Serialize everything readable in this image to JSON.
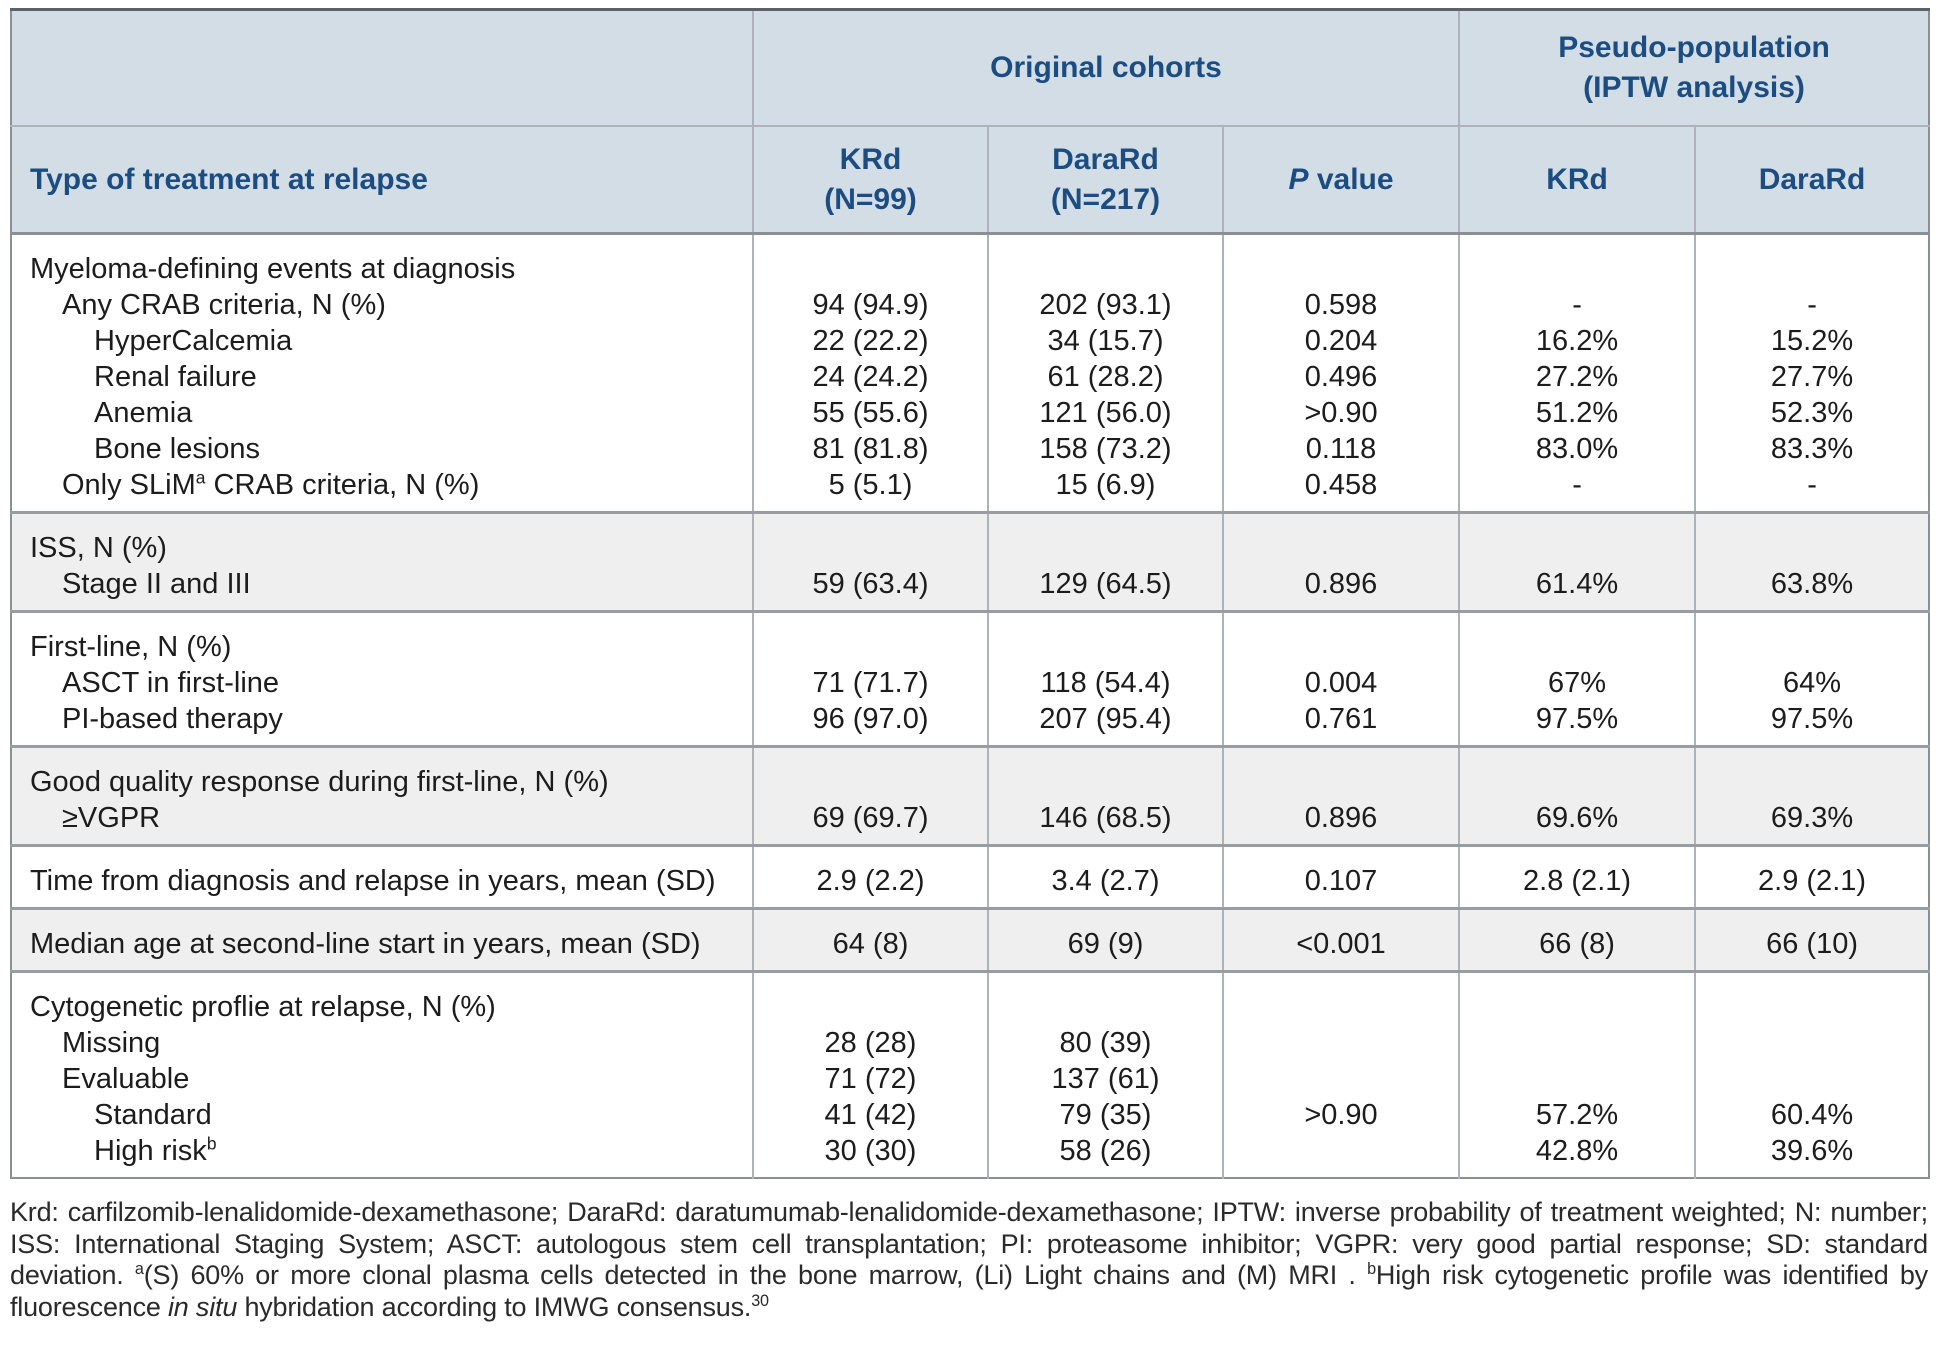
{
  "table": {
    "header": {
      "group_original": "Original cohorts",
      "group_pseudo_line1": "Pseudo-population",
      "group_pseudo_line2": "(IPTW analysis)",
      "col_label": "Type of treatment at relapse",
      "col_krd_line1": "KRd",
      "col_krd_line2": "(N=99)",
      "col_darard_line1": "DaraRd",
      "col_darard_line2": "(N=217)",
      "col_p_italic": "P",
      "col_p_rest": " value",
      "col_krd_pseudo": "KRd",
      "col_darard_pseudo": "DaraRd"
    },
    "sections": [
      {
        "shaded": false,
        "rows": [
          {
            "indent": 0,
            "pre": "Myeloma-defining events at diagnosis",
            "sup": "",
            "post": "",
            "cells": [
              "",
              "",
              "",
              "",
              ""
            ]
          },
          {
            "indent": 1,
            "pre": "Any CRAB criteria, N (%)",
            "sup": "",
            "post": "",
            "cells": [
              "94 (94.9)",
              "202 (93.1)",
              "0.598",
              "-",
              "-"
            ]
          },
          {
            "indent": 2,
            "pre": "HyperCalcemia",
            "sup": "",
            "post": "",
            "cells": [
              "22 (22.2)",
              "34 (15.7)",
              "0.204",
              "16.2%",
              "15.2%"
            ]
          },
          {
            "indent": 2,
            "pre": "Renal failure",
            "sup": "",
            "post": "",
            "cells": [
              "24 (24.2)",
              "61 (28.2)",
              "0.496",
              "27.2%",
              "27.7%"
            ]
          },
          {
            "indent": 2,
            "pre": "Anemia",
            "sup": "",
            "post": "",
            "cells": [
              "55 (55.6)",
              "121 (56.0)",
              ">0.90",
              "51.2%",
              "52.3%"
            ]
          },
          {
            "indent": 2,
            "pre": "Bone lesions",
            "sup": "",
            "post": "",
            "cells": [
              "81 (81.8)",
              "158 (73.2)",
              "0.118",
              "83.0%",
              "83.3%"
            ]
          },
          {
            "indent": 1,
            "pre": "Only SLiM",
            "sup": "a",
            "post": " CRAB criteria, N (%)",
            "cells": [
              "5 (5.1)",
              "15 (6.9)",
              "0.458",
              "-",
              "-"
            ]
          }
        ]
      },
      {
        "shaded": true,
        "rows": [
          {
            "indent": 0,
            "pre": "ISS, N (%)",
            "sup": "",
            "post": "",
            "cells": [
              "",
              "",
              "",
              "",
              ""
            ]
          },
          {
            "indent": 1,
            "pre": "Stage II and III",
            "sup": "",
            "post": "",
            "cells": [
              "59 (63.4)",
              "129 (64.5)",
              "0.896",
              "61.4%",
              "63.8%"
            ]
          }
        ]
      },
      {
        "shaded": false,
        "rows": [
          {
            "indent": 0,
            "pre": "First-line, N (%)",
            "sup": "",
            "post": "",
            "cells": [
              "",
              "",
              "",
              "",
              ""
            ]
          },
          {
            "indent": 1,
            "pre": "ASCT in first-line",
            "sup": "",
            "post": "",
            "cells": [
              "71 (71.7)",
              "118 (54.4)",
              "0.004",
              "67%",
              "64%"
            ]
          },
          {
            "indent": 1,
            "pre": "PI-based therapy",
            "sup": "",
            "post": "",
            "cells": [
              "96 (97.0)",
              "207 (95.4)",
              "0.761",
              "97.5%",
              "97.5%"
            ]
          }
        ]
      },
      {
        "shaded": true,
        "rows": [
          {
            "indent": 0,
            "pre": "Good quality response during first-line, N (%)",
            "sup": "",
            "post": "",
            "cells": [
              "",
              "",
              "",
              "",
              ""
            ]
          },
          {
            "indent": 1,
            "pre": "≥VGPR",
            "sup": "",
            "post": "",
            "cells": [
              "69 (69.7)",
              "146 (68.5)",
              "0.896",
              "69.6%",
              "69.3%"
            ]
          }
        ]
      },
      {
        "shaded": false,
        "rows": [
          {
            "indent": 0,
            "pre": "Time from diagnosis and relapse in years, mean (SD)",
            "sup": "",
            "post": "",
            "cells": [
              "2.9 (2.2)",
              "3.4 (2.7)",
              "0.107",
              "2.8 (2.1)",
              "2.9 (2.1)"
            ]
          }
        ]
      },
      {
        "shaded": true,
        "rows": [
          {
            "indent": 0,
            "pre": "Median age at second-line start in years, mean (SD)",
            "sup": "",
            "post": "",
            "cells": [
              "64 (8)",
              "69 (9)",
              "<0.001",
              "66 (8)",
              "66 (10)"
            ]
          }
        ]
      },
      {
        "shaded": false,
        "rows": [
          {
            "indent": 0,
            "pre": "Cytogenetic proflie at relapse, N (%)",
            "sup": "",
            "post": "",
            "cells": [
              "",
              "",
              "",
              "",
              ""
            ]
          },
          {
            "indent": 1,
            "pre": "Missing",
            "sup": "",
            "post": "",
            "cells": [
              "28 (28)",
              "80 (39)",
              "",
              "",
              ""
            ]
          },
          {
            "indent": 1,
            "pre": "Evaluable",
            "sup": "",
            "post": "",
            "cells": [
              "71 (72)",
              "137 (61)",
              "",
              "",
              ""
            ]
          },
          {
            "indent": 2,
            "pre": "Standard",
            "sup": "",
            "post": "",
            "cells": [
              "41 (42)",
              "79 (35)",
              ">0.90",
              "57.2%",
              "60.4%"
            ]
          },
          {
            "indent": 2,
            "pre": "High risk",
            "sup": "b",
            "post": "",
            "cells": [
              "30 (30)",
              "58 (26)",
              "",
              "42.8%",
              "39.6%"
            ]
          }
        ]
      }
    ]
  },
  "footnote": {
    "segments": [
      {
        "style": "normal",
        "text": "Krd: carfilzomib-lenalidomide-dexamethasone; DaraRd: daratumumab-lenalidomide-dexamethasone; IPTW: inverse probability of treatment weighted; N: number; ISS: International Staging System; ASCT: autologous stem cell transplantation; PI: proteasome inhibitor; VGPR: very good partial response; SD: standard deviation. "
      },
      {
        "style": "sup",
        "text": "a"
      },
      {
        "style": "normal",
        "text": "(S) 60% or more clonal plasma cells detected in the bone marrow, (Li) Light chains and (M) MRI . "
      },
      {
        "style": "sup",
        "text": "b"
      },
      {
        "style": "normal",
        "text": "High risk cytogenetic profile was identified by fluorescence "
      },
      {
        "style": "italic",
        "text": "in situ"
      },
      {
        "style": "normal",
        "text": " hybridation according to IMWG consensus."
      },
      {
        "style": "sup",
        "text": "30"
      }
    ]
  },
  "colors": {
    "header_bg": "#d3dde6",
    "header_text": "#1b4d82",
    "shaded_section_bg": "#efefef",
    "border_dark": "#8b9095",
    "border_light": "#adb3b9",
    "body_text": "#1c1c1c"
  }
}
